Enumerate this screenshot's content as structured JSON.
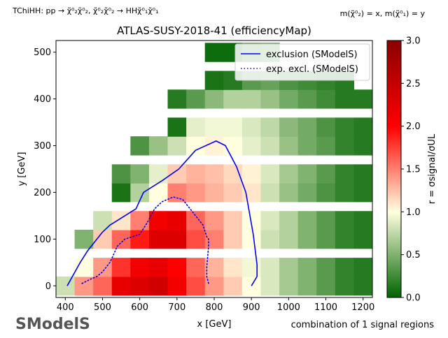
{
  "header": {
    "process_label": "TChiHH: pp → χ̃⁰₂χ̃⁰₂, χ̃⁰₂χ̃⁰₂ → HHχ̃⁰₁χ̃⁰₁",
    "mass_label": "m(χ̃⁰₂) = x, m(χ̃⁰₁) = y"
  },
  "footer": {
    "signal_regions": "combination of 1 signal regions",
    "logo": "SModelS"
  },
  "chart_data": {
    "type": "heatmap",
    "title": "ATLAS-SUSY-2018-41 (efficiencyMap)",
    "xlabel": "x [GeV]",
    "ylabel": "y [GeV]",
    "colorbar_label": "r = σsignal/σUL",
    "xlim": [
      375,
      1225
    ],
    "ylim": [
      -25,
      525
    ],
    "xticks": [
      400,
      500,
      600,
      700,
      800,
      900,
      1000,
      1100,
      1200
    ],
    "yticks": [
      0,
      100,
      200,
      300,
      400,
      500
    ],
    "colorbar_range": [
      0,
      3
    ],
    "colorbar_ticks": [
      0.0,
      0.5,
      1.0,
      1.5,
      2.0,
      2.5,
      3.0
    ],
    "colorscale": [
      "#006400",
      "#ffffe0",
      "#ff0000",
      "#8b0000"
    ],
    "cell_width": 50,
    "cell_height": 40,
    "x_centers": [
      400,
      450,
      500,
      550,
      600,
      650,
      700,
      750,
      800,
      850,
      900,
      950,
      1000,
      1050,
      1100,
      1150,
      1200
    ],
    "y_centers": [
      0,
      40,
      100,
      140,
      200,
      240,
      300,
      340,
      400,
      440,
      500
    ],
    "z": [
      [
        0.8,
        1.4,
        1.6,
        2.2,
        2.3,
        2.4,
        2.1,
        1.7,
        1.4,
        1.2,
        1.0,
        0.85,
        0.65,
        0.5,
        0.35,
        0.2,
        0.15
      ],
      [
        null,
        1.0,
        1.4,
        1.8,
        2.1,
        2.2,
        2.0,
        1.6,
        1.3,
        1.1,
        0.95,
        0.85,
        0.65,
        0.5,
        0.35,
        0.2,
        0.15
      ],
      [
        null,
        0.5,
        1.2,
        1.6,
        1.9,
        2.3,
        2.3,
        1.7,
        1.5,
        1.2,
        1.0,
        0.8,
        0.7,
        0.5,
        0.35,
        0.2,
        0.15
      ],
      [
        null,
        null,
        0.8,
        1.1,
        1.5,
        2.1,
        2.2,
        1.6,
        1.4,
        1.2,
        1.0,
        0.85,
        0.7,
        0.5,
        0.35,
        0.2,
        0.15
      ],
      [
        null,
        null,
        null,
        0.1,
        0.7,
        1.0,
        1.5,
        1.4,
        1.3,
        1.2,
        1.1,
        0.8,
        0.6,
        0.45,
        0.3,
        0.2,
        0.15
      ],
      [
        null,
        null,
        null,
        0.3,
        0.5,
        0.9,
        1.2,
        1.3,
        1.25,
        1.15,
        1.05,
        0.85,
        0.65,
        0.5,
        0.35,
        0.2,
        0.15
      ],
      [
        null,
        null,
        null,
        null,
        0.3,
        0.6,
        0.8,
        1.0,
        1.05,
        1.0,
        0.9,
        0.8,
        0.6,
        0.45,
        0.35,
        0.2,
        0.15
      ],
      [
        null,
        null,
        null,
        null,
        null,
        null,
        0.1,
        0.9,
        0.95,
        0.95,
        0.85,
        0.75,
        0.55,
        0.45,
        0.3,
        0.2,
        0.15
      ],
      [
        null,
        null,
        null,
        null,
        null,
        null,
        0.15,
        0.35,
        0.55,
        0.7,
        0.7,
        0.6,
        0.45,
        0.35,
        0.25,
        0.15,
        0.15
      ],
      [
        null,
        null,
        null,
        null,
        null,
        null,
        null,
        null,
        0.1,
        0.15,
        0.35,
        0.4,
        0.3,
        0.25,
        0.2,
        0.15,
        null
      ],
      [
        null,
        null,
        null,
        null,
        null,
        null,
        null,
        null,
        0.05,
        0.05,
        0.25,
        0.3,
        null,
        null,
        null,
        null,
        null
      ]
    ],
    "legend": {
      "placement": "top-right",
      "entries": [
        "exclusion (SModelS)",
        "exp. excl. (SModelS)"
      ]
    },
    "series": [
      {
        "name": "exclusion (SModelS)",
        "style": "solid",
        "color": "#0000ff",
        "x": [
          405,
          440,
          460,
          500,
          520,
          550,
          590,
          610,
          660,
          705,
          750,
          805,
          830,
          860,
          885,
          905,
          915,
          915,
          900
        ],
        "y": [
          0,
          50,
          75,
          115,
          130,
          145,
          165,
          200,
          225,
          250,
          290,
          310,
          300,
          255,
          200,
          110,
          45,
          20,
          0
        ]
      },
      {
        "name": "exp. excl. (SModelS)",
        "style": "dotted",
        "color": "#0000ff",
        "x": [
          445,
          470,
          485,
          500,
          520,
          540,
          560,
          580,
          600,
          620,
          640,
          660,
          690,
          715,
          745,
          770,
          780,
          785,
          785,
          780,
          780,
          785
        ],
        "y": [
          5,
          15,
          20,
          30,
          50,
          85,
          100,
          105,
          110,
          135,
          165,
          180,
          190,
          185,
          155,
          130,
          105,
          100,
          85,
          40,
          20,
          5
        ]
      }
    ]
  }
}
